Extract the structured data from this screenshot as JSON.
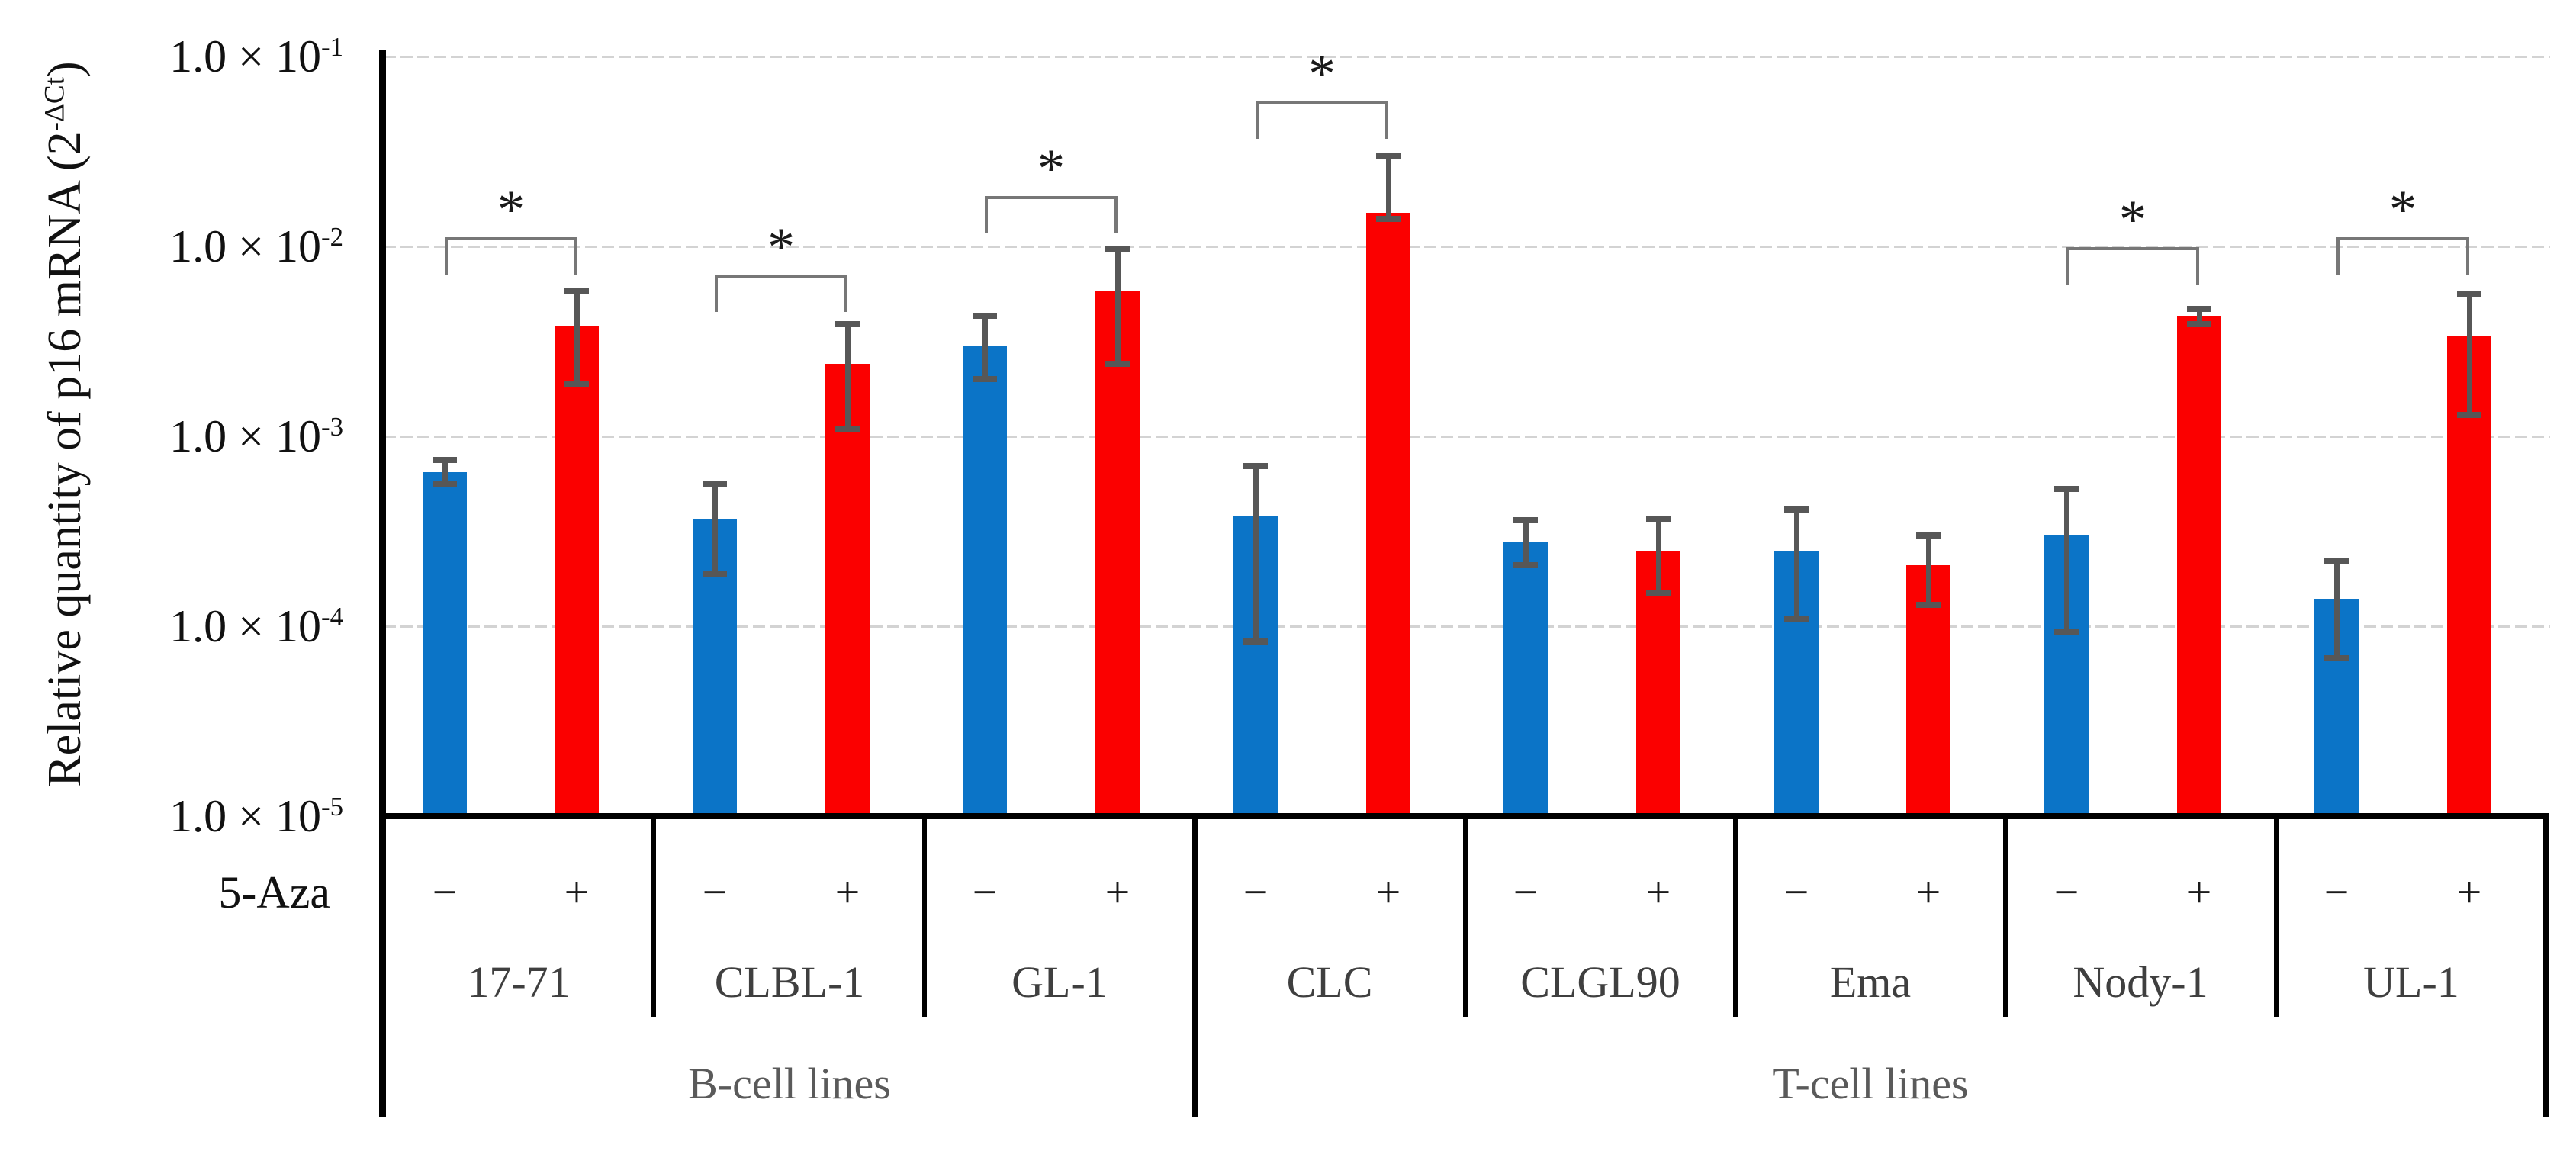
{
  "figure": {
    "y_axis_title": {
      "prefix": "Relative quantity of p16 mRNA (2",
      "superscript": "-ΔCt",
      "suffix": ")"
    },
    "treatment_row_label": "5-Aza",
    "sig_symbol": "*",
    "colors": {
      "minus_bar": "#0B74C7",
      "plus_bar": "#FB0000",
      "error_bar": "#575757",
      "bracket": "#777777",
      "gridline": "#D3D3D3",
      "axis": "#000000",
      "category_text": "#3F3F3F",
      "class_text": "#5A5A5A"
    }
  },
  "chart_data": {
    "type": "bar",
    "y_scale": "log",
    "title": "",
    "xlabel": "",
    "ylabel": "Relative quantity of p16 mRNA (2^-ΔCt)",
    "ylim": [
      1e-05,
      0.1
    ],
    "grid": "horizontal",
    "legend": "none",
    "y_ticks": [
      {
        "base": "1.0 × 10",
        "exp": "-1",
        "value": 0.1
      },
      {
        "base": "1.0 × 10",
        "exp": "-2",
        "value": 0.01
      },
      {
        "base": "1.0 × 10",
        "exp": "-3",
        "value": 0.001
      },
      {
        "base": "1.0 × 10",
        "exp": "-4",
        "value": 0.0001
      },
      {
        "base": "1.0 × 10",
        "exp": "-5",
        "value": 1e-05
      }
    ],
    "x_treatment_label": "5-Aza",
    "treatments": [
      "−",
      "+"
    ],
    "categories": [
      "17-71",
      "CLBL-1",
      "GL-1",
      "CLC",
      "CLGL90",
      "Ema",
      "Nody-1",
      "UL-1"
    ],
    "category_groups": [
      {
        "label": "B-cell lines",
        "from": 0,
        "to": 2
      },
      {
        "label": "T-cell lines",
        "from": 3,
        "to": 7
      }
    ],
    "series": [
      {
        "name": "5-Aza −",
        "treatment": "−",
        "color": "#0B74C7",
        "values": [
          0.00065,
          0.00037,
          0.003,
          0.00038,
          0.00028,
          0.00025,
          0.0003,
          0.00014
        ],
        "err_hi": [
          0.00075,
          0.00056,
          0.0043,
          0.0007,
          0.00036,
          0.00041,
          0.00053,
          0.00022
        ],
        "err_lo": [
          0.00056,
          0.00019,
          0.002,
          8.3e-05,
          0.00021,
          0.00011,
          9.4e-05,
          6.8e-05
        ]
      },
      {
        "name": "5-Aza +",
        "treatment": "+",
        "color": "#FB0000",
        "values": [
          0.0038,
          0.0024,
          0.0058,
          0.015,
          0.00025,
          0.00021,
          0.0043,
          0.0034
        ],
        "err_hi": [
          0.0058,
          0.0039,
          0.0097,
          0.03,
          0.00037,
          0.0003,
          0.0047,
          0.0056
        ],
        "err_lo": [
          0.0019,
          0.0011,
          0.0024,
          0.014,
          0.00015,
          0.00013,
          0.0039,
          0.0013
        ]
      }
    ],
    "significance": [
      {
        "category": "17-71",
        "label": "*",
        "bracket_value": 0.011
      },
      {
        "category": "CLBL-1",
        "label": "*",
        "bracket_value": 0.007
      },
      {
        "category": "GL-1",
        "label": "*",
        "bracket_value": 0.018
      },
      {
        "category": "CLC",
        "label": "*",
        "bracket_value": 0.057
      },
      {
        "category": "Nody-1",
        "label": "*",
        "bracket_value": 0.0097
      },
      {
        "category": "UL-1",
        "label": "*",
        "bracket_value": 0.011
      }
    ]
  }
}
